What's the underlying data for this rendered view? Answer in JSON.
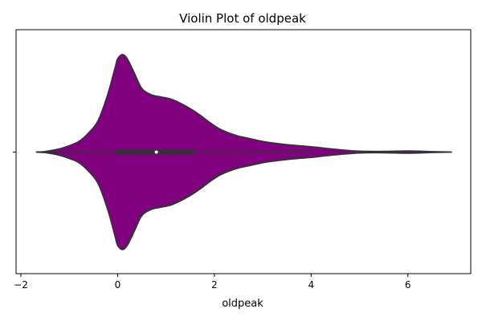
{
  "chart_data": {
    "type": "violin",
    "title": "Violin Plot of oldpeak",
    "xlabel": "oldpeak",
    "ylabel": "",
    "xlim": [
      -2.1,
      7.3
    ],
    "xticks": [
      -2,
      0,
      2,
      4,
      6
    ],
    "xtick_labels": [
      "−2",
      "0",
      "2",
      "4",
      "6"
    ],
    "yticks": [
      ""
    ],
    "grid": false,
    "series": [
      {
        "name": "oldpeak",
        "color": "#800080",
        "edge_color": "#333333",
        "density": {
          "x": [
            -1.68,
            -1.5,
            -1.2,
            -1.0,
            -0.8,
            -0.6,
            -0.4,
            -0.2,
            -0.05,
            0.0,
            0.1,
            0.2,
            0.35,
            0.5,
            0.7,
            0.9,
            1.1,
            1.3,
            1.5,
            1.7,
            1.9,
            2.1,
            2.3,
            2.5,
            2.7,
            3.0,
            3.3,
            3.6,
            4.0,
            4.3,
            4.6,
            5.0,
            5.5,
            6.0,
            6.5,
            6.9
          ],
          "half_width": [
            0,
            0.005,
            0.03,
            0.06,
            0.1,
            0.18,
            0.3,
            0.55,
            0.8,
            0.88,
            0.92,
            0.88,
            0.74,
            0.6,
            0.54,
            0.52,
            0.5,
            0.46,
            0.41,
            0.35,
            0.28,
            0.22,
            0.18,
            0.15,
            0.13,
            0.1,
            0.08,
            0.065,
            0.05,
            0.035,
            0.022,
            0.008,
            0.006,
            0.01,
            0.004,
            0
          ]
        },
        "box": {
          "whisker_low": -1.68,
          "q1": -0.05,
          "median": 0.8,
          "q3": 1.6,
          "whisker_high": 4.0
        }
      }
    ]
  }
}
